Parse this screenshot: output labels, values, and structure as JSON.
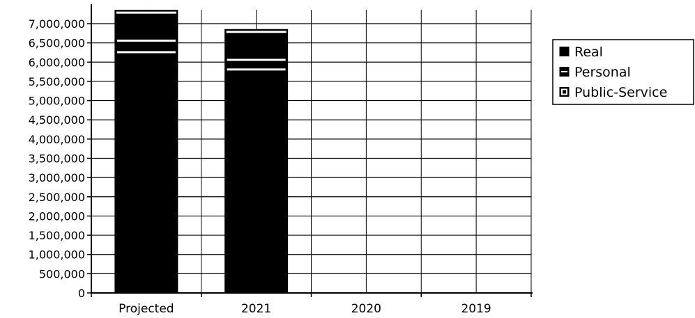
{
  "chart_data": {
    "type": "bar",
    "stacked": true,
    "categories": [
      "Projected",
      "2021",
      "2020",
      "2019"
    ],
    "series": [
      {
        "name": "Real",
        "values": [
          6250000,
          5800000,
          0,
          0
        ]
      },
      {
        "name": "Personal",
        "values": [
          300000,
          250000,
          0,
          0
        ]
      },
      {
        "name": "Public-Service",
        "values": [
          800000,
          800000,
          0,
          0
        ]
      }
    ],
    "yticks": [
      "0",
      "500,000",
      "1,000,000",
      "1,500,000",
      "2,000,000",
      "2,500,000",
      "3,000,000",
      "3,500,000",
      "4,000,000",
      "4,500,000",
      "5,000,000",
      "5,500,000",
      "6,000,000",
      "6,500,000",
      "7,000,000"
    ],
    "ylim": [
      0,
      7000000
    ],
    "grid": true,
    "legend_position": "right",
    "colors": {
      "bar_fill": "#000000",
      "bar_outline": "#000000",
      "segment_separator": "#ffffff",
      "grid": "#000000",
      "axis": "#000000"
    }
  }
}
